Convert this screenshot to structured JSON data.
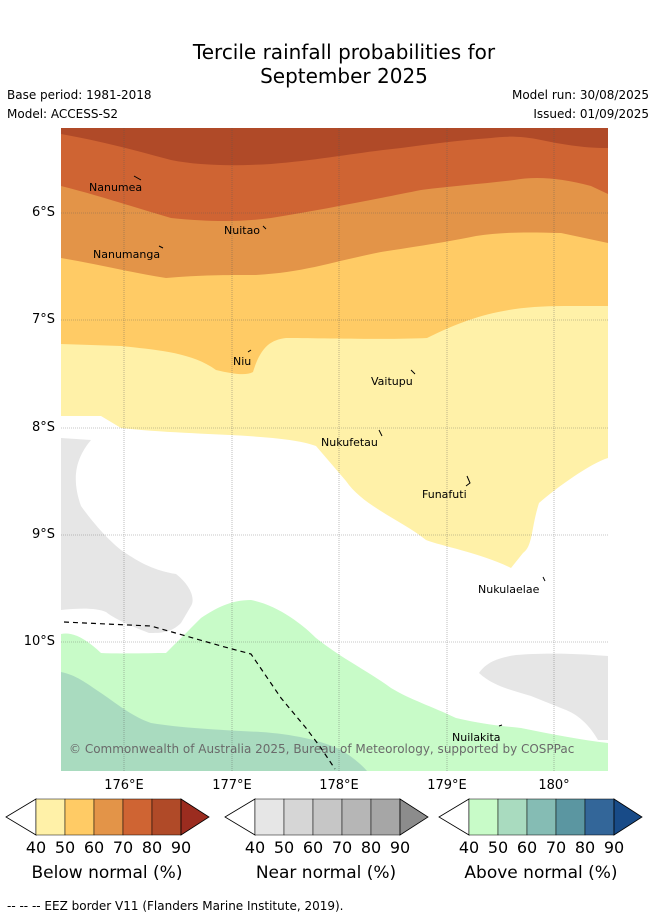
{
  "title_line1": "Tercile rainfall probabilities for",
  "title_line2": "September 2025",
  "base_period": "Base period: 1981-2018",
  "model": "Model: ACCESS-S2",
  "model_run": "Model run: 30/08/2025",
  "issued": "Issued: 01/09/2025",
  "latitude_labels": [
    "6°S",
    "7°S",
    "8°S",
    "9°S",
    "10°S"
  ],
  "longitude_labels": [
    "176°E",
    "177°E",
    "178°E",
    "179°E",
    "180°"
  ],
  "islands": [
    "Nanumea",
    "Nuitao",
    "Nanumanga",
    "Niu",
    "Vaitupu",
    "Nukufetau",
    "Funafuti",
    "Nukulaelae",
    "Nuilakita"
  ],
  "copyright": "© Commonwealth of Australia 2025, Bureau of Meteorology, supported by COSPPac",
  "colorbars": [
    {
      "title": "Below normal (%)",
      "ticks": [
        "40",
        "50",
        "60",
        "70",
        "80",
        "90"
      ],
      "colors": [
        "#fff1a8",
        "#ffcb65",
        "#e39448",
        "#cf6433",
        "#b04a28",
        "#9b2c1f"
      ]
    },
    {
      "title": "Near normal (%)",
      "ticks": [
        "40",
        "50",
        "60",
        "70",
        "80",
        "90"
      ],
      "colors": [
        "#e6e6e6",
        "#d6d6d6",
        "#c6c6c6",
        "#b6b6b6",
        "#a6a6a6",
        "#8c8c8c"
      ]
    },
    {
      "title": "Above normal (%)",
      "ticks": [
        "40",
        "50",
        "60",
        "70",
        "80",
        "90"
      ],
      "colors": [
        "#c8fbc8",
        "#a9dbbf",
        "#85bcb4",
        "#5b96a1",
        "#336699",
        "#184b88"
      ]
    }
  ],
  "legend_footer": "-- -- -- EEZ border V11 (Flanders Marine Institute, 2019)."
}
